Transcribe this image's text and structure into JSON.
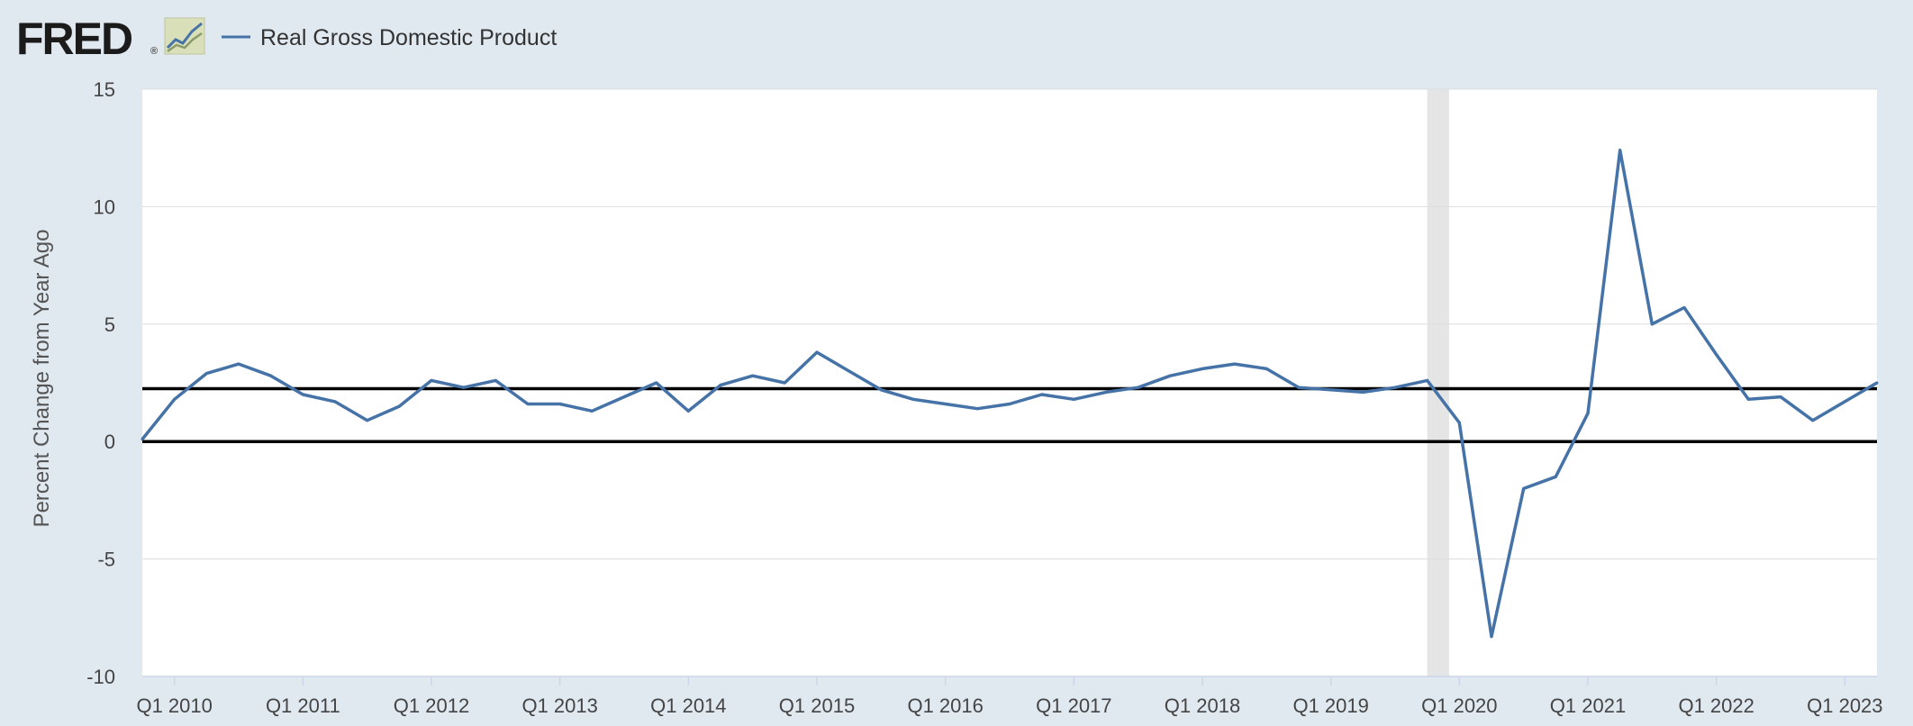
{
  "header": {
    "logo_text": "FRED",
    "logo_mark": "®",
    "logo_icon": "line-graph-icon"
  },
  "colors": {
    "background": "#e1e9f0",
    "plot_background": "#ffffff",
    "series": "#4572a7",
    "recession_shade": "#e5e5e5",
    "reference_line": "#000000",
    "grid": "#dddddd"
  },
  "chart_data": {
    "type": "line",
    "title": "",
    "xlabel": "",
    "ylabel": "Percent Change from Year Ago",
    "ylim": [
      -10,
      15
    ],
    "yticks": [
      -10,
      -5,
      0,
      5,
      10,
      15
    ],
    "xlim": [
      2010.0,
      2023.5
    ],
    "xticks": [
      {
        "label": "Q1 2010",
        "value": 2010.25
      },
      {
        "label": "Q1 2011",
        "value": 2011.25
      },
      {
        "label": "Q1 2012",
        "value": 2012.25
      },
      {
        "label": "Q1 2013",
        "value": 2013.25
      },
      {
        "label": "Q1 2014",
        "value": 2014.25
      },
      {
        "label": "Q1 2015",
        "value": 2015.25
      },
      {
        "label": "Q1 2016",
        "value": 2016.25
      },
      {
        "label": "Q1 2017",
        "value": 2017.25
      },
      {
        "label": "Q1 2018",
        "value": 2018.25
      },
      {
        "label": "Q1 2019",
        "value": 2019.25
      },
      {
        "label": "Q1 2020",
        "value": 2020.25
      },
      {
        "label": "Q1 2021",
        "value": 2021.25
      },
      {
        "label": "Q1 2022",
        "value": 2022.25
      },
      {
        "label": "Q1 2023",
        "value": 2023.25
      }
    ],
    "grid": true,
    "legend_position": "top-left",
    "recessions": [
      {
        "start": 2020.0,
        "end": 2020.17
      }
    ],
    "reference_lines": [
      0,
      2.25
    ],
    "series": [
      {
        "name": "Real Gross Domestic Product",
        "color": "#4572a7",
        "x": [
          2010.0,
          2010.25,
          2010.5,
          2010.75,
          2011.0,
          2011.25,
          2011.5,
          2011.75,
          2012.0,
          2012.25,
          2012.5,
          2012.75,
          2013.0,
          2013.25,
          2013.5,
          2013.75,
          2014.0,
          2014.25,
          2014.5,
          2014.75,
          2015.0,
          2015.25,
          2015.5,
          2015.75,
          2016.0,
          2016.25,
          2016.5,
          2016.75,
          2017.0,
          2017.25,
          2017.5,
          2017.75,
          2018.0,
          2018.25,
          2018.5,
          2018.75,
          2019.0,
          2019.25,
          2019.5,
          2019.75,
          2020.0,
          2020.25,
          2020.5,
          2020.75,
          2021.0,
          2021.25,
          2021.5,
          2021.75,
          2022.0,
          2022.25,
          2022.5,
          2022.75,
          2023.0,
          2023.25,
          2023.5
        ],
        "values": [
          0.1,
          1.8,
          2.9,
          3.3,
          2.8,
          2.0,
          1.7,
          0.9,
          1.5,
          2.6,
          2.3,
          2.6,
          1.6,
          1.6,
          1.3,
          1.9,
          2.5,
          1.3,
          2.4,
          2.8,
          2.5,
          3.8,
          3.0,
          2.2,
          1.8,
          1.6,
          1.4,
          1.6,
          2.0,
          1.8,
          2.1,
          2.3,
          2.8,
          3.1,
          3.3,
          3.1,
          2.3,
          2.2,
          2.1,
          2.3,
          2.6,
          0.8,
          -8.3,
          -2.0,
          -1.5,
          1.2,
          12.4,
          5.0,
          5.7,
          3.7,
          1.8,
          1.9,
          0.9,
          1.7,
          2.5
        ]
      }
    ]
  }
}
